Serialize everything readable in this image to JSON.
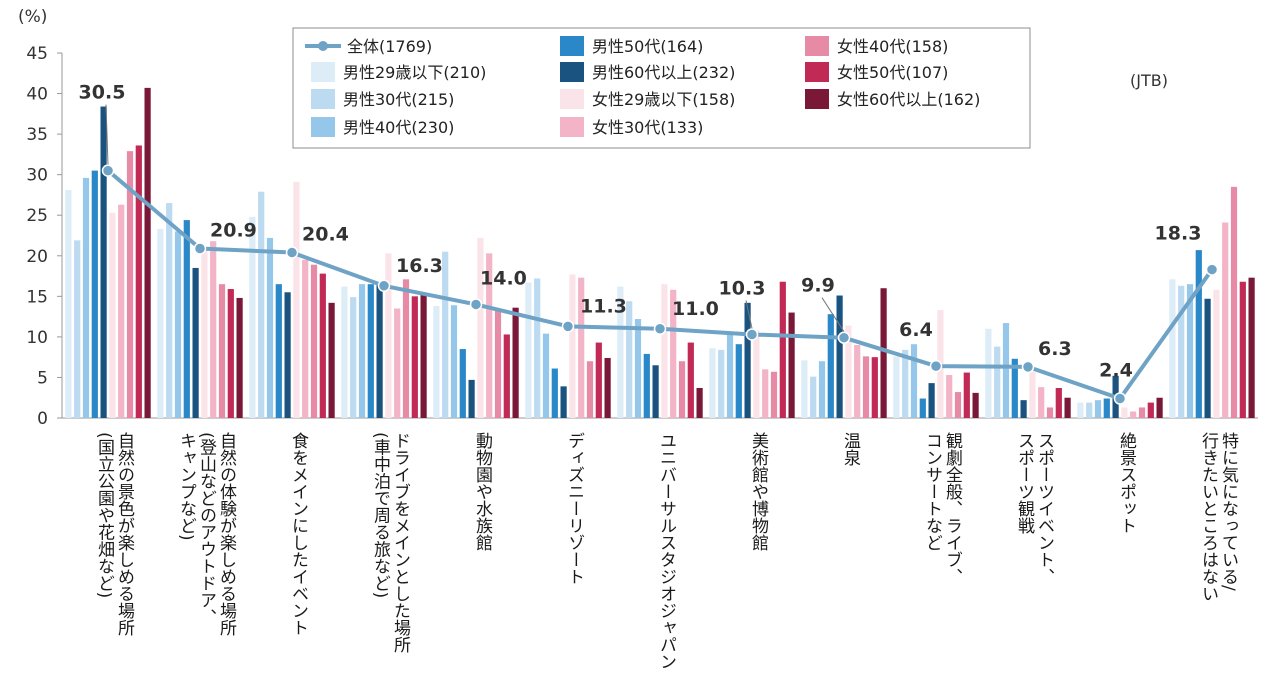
{
  "chart_data": {
    "type": "bar",
    "unit_label": "(%)",
    "source_label": "(JTB)",
    "ylim": [
      0,
      45
    ],
    "yticks": [
      0,
      5,
      10,
      15,
      20,
      25,
      30,
      35,
      40,
      45
    ],
    "grid": false,
    "legend_position": "top",
    "categories": [
      [
        "自然の景色が楽しめる場所",
        "(国立公園や花畑など)"
      ],
      [
        "自然の体験が楽しめる場所",
        "(登山などのアウトドア、",
        "キャンプなど)"
      ],
      [
        "食をメインにしたイベント"
      ],
      [
        "ドライブをメインとした場所",
        "(車中泊で周る旅など)"
      ],
      [
        "動物園や水族館"
      ],
      [
        "ディズニーリゾート"
      ],
      [
        "ユニバーサルスタジオジャパン"
      ],
      [
        "美術館や博物館"
      ],
      [
        "温泉"
      ],
      [
        "観劇全般、ライブ、",
        "コンサートなど"
      ],
      [
        "スポーツイベント、",
        "スポーツ観戦"
      ],
      [
        "絶景スポット"
      ],
      [
        "特に気になっている/",
        "行きたいところはない"
      ]
    ],
    "series": [
      {
        "name": "男性29歳以下(210)",
        "color": "#dcedf8",
        "values": [
          28.1,
          23.3,
          24.8,
          16.2,
          13.8,
          16.7,
          16.2,
          8.6,
          7.1,
          7.6,
          11.0,
          1.9,
          17.1
        ]
      },
      {
        "name": "男性30代(215)",
        "color": "#bcdbf1",
        "values": [
          21.9,
          26.5,
          27.9,
          14.9,
          20.5,
          17.2,
          14.4,
          8.4,
          5.1,
          8.4,
          8.8,
          1.9,
          16.3
        ]
      },
      {
        "name": "男性40代(230)",
        "color": "#95c7ea",
        "values": [
          29.6,
          23.0,
          22.2,
          16.5,
          13.9,
          10.4,
          12.2,
          10.4,
          7.0,
          9.1,
          11.7,
          2.2,
          16.5
        ]
      },
      {
        "name": "男性50代(164)",
        "color": "#2a88c9",
        "values": [
          30.5,
          24.4,
          16.5,
          16.5,
          8.5,
          6.1,
          7.9,
          9.1,
          12.8,
          2.4,
          7.3,
          2.4,
          20.7
        ]
      },
      {
        "name": "男性60代以上(232)",
        "color": "#1a5380",
        "values": [
          38.4,
          18.5,
          15.5,
          16.4,
          4.7,
          3.9,
          6.5,
          14.2,
          15.1,
          4.3,
          2.2,
          5.2,
          14.7
        ]
      },
      {
        "name": "女性29歳以下(158)",
        "color": "#fbe3ea",
        "values": [
          25.3,
          20.9,
          29.1,
          20.3,
          22.2,
          17.7,
          16.5,
          10.8,
          11.4,
          13.3,
          5.7,
          1.3,
          15.8
        ]
      },
      {
        "name": "女性30代(133)",
        "color": "#f2b4c6",
        "values": [
          26.3,
          21.8,
          19.5,
          13.5,
          20.3,
          17.3,
          15.8,
          6.0,
          9.0,
          5.3,
          3.8,
          0.8,
          24.1
        ]
      },
      {
        "name": "女性40代(158)",
        "color": "#e78aa6",
        "values": [
          32.9,
          16.5,
          18.9,
          17.1,
          13.3,
          7.0,
          7.0,
          5.7,
          7.6,
          3.2,
          1.3,
          1.3,
          28.5
        ]
      },
      {
        "name": "女性50代(107)",
        "color": "#c12a55",
        "values": [
          33.6,
          15.9,
          17.8,
          15.0,
          10.3,
          9.3,
          9.3,
          16.8,
          7.5,
          5.6,
          3.7,
          1.9,
          16.8
        ]
      },
      {
        "name": "女性60代以上(162)",
        "color": "#7a1838",
        "values": [
          40.7,
          14.8,
          14.2,
          15.4,
          13.6,
          7.4,
          3.7,
          13.0,
          16.0,
          3.1,
          2.5,
          2.5,
          17.3
        ]
      }
    ],
    "line": {
      "name": "全体(1769)",
      "color": "#6fa3c6",
      "values": [
        30.5,
        20.9,
        20.4,
        16.3,
        14.0,
        11.3,
        11.0,
        10.3,
        9.9,
        6.4,
        6.3,
        2.4,
        18.3
      ],
      "labels": [
        "30.5",
        "20.9",
        "20.4",
        "16.3",
        "14.0",
        "11.3",
        "11.0",
        "10.3",
        "9.9",
        "6.4",
        "6.3",
        "2.4",
        "18.3"
      ]
    }
  }
}
